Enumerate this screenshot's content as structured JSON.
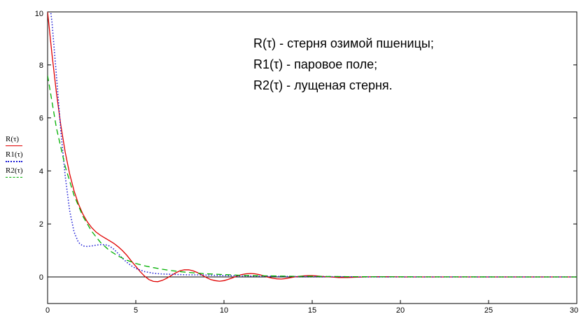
{
  "chart_data": {
    "type": "line",
    "title": "",
    "xlabel": "",
    "ylabel": "",
    "xlim": [
      0,
      30
    ],
    "ylim": [
      -1,
      10
    ],
    "x_ticks": [
      0,
      5,
      10,
      15,
      20,
      25,
      30
    ],
    "y_ticks": [
      0,
      2,
      4,
      6,
      8,
      10
    ],
    "grid": false,
    "legend": {
      "placement": "left",
      "entries": [
        "R(τ)",
        "R1(τ)",
        "R2(τ)"
      ]
    },
    "annotations": [
      "R(τ) - стерня озимой пшеницы;",
      "R1(τ) - паровое поле;",
      "R2(τ) - лущеная стерня."
    ],
    "series": [
      {
        "name": "R(τ)",
        "color": "#e00000",
        "style": "solid",
        "x": [
          0,
          0.25,
          0.5,
          0.75,
          1,
          1.25,
          1.5,
          1.75,
          2,
          2.25,
          2.5,
          2.75,
          3,
          3.25,
          3.5,
          3.75,
          4,
          4.25,
          4.5,
          4.75,
          5,
          5.25,
          5.5,
          5.75,
          6,
          6.25,
          6.5,
          6.75,
          7,
          7.25,
          7.5,
          7.75,
          8,
          8.25,
          8.5,
          8.75,
          9,
          9.25,
          9.5,
          9.75,
          10,
          10.25,
          10.5,
          10.75,
          11,
          11.25,
          11.5,
          11.75,
          12,
          12.25,
          12.5,
          12.75,
          13,
          13.25,
          13.5,
          13.75,
          14,
          14.25,
          14.5,
          14.75,
          15,
          15.25,
          15.5,
          15.75,
          16,
          16.25,
          16.5,
          16.75,
          17,
          17.5,
          18,
          18.5,
          19,
          19.5,
          20,
          21,
          22,
          23,
          24,
          25,
          26,
          27,
          28,
          29,
          30
        ],
        "values": [
          10.0,
          8.39,
          6.95,
          5.72,
          4.7,
          3.89,
          3.25,
          2.75,
          2.37,
          2.08,
          1.86,
          1.69,
          1.57,
          1.47,
          1.37,
          1.27,
          1.14,
          0.99,
          0.81,
          0.6,
          0.4,
          0.2,
          0.03,
          -0.1,
          -0.17,
          -0.18,
          -0.13,
          -0.05,
          0.05,
          0.15,
          0.23,
          0.27,
          0.27,
          0.23,
          0.16,
          0.07,
          -0.02,
          -0.1,
          -0.14,
          -0.16,
          -0.14,
          -0.09,
          -0.03,
          0.04,
          0.09,
          0.12,
          0.13,
          0.12,
          0.09,
          0.04,
          -0.01,
          -0.05,
          -0.07,
          -0.08,
          -0.06,
          -0.03,
          0.0,
          0.02,
          0.04,
          0.05,
          0.05,
          0.04,
          0.02,
          0.01,
          0.0,
          -0.01,
          -0.02,
          -0.02,
          -0.02,
          -0.01,
          0.0,
          0.01,
          0.01,
          0.01,
          0.0,
          0.0,
          0.0,
          0.0,
          0.0,
          0.0,
          0.0,
          0.0,
          0.0,
          0.0,
          0.0
        ]
      },
      {
        "name": "R1(τ)",
        "color": "#1f1fd6",
        "style": "dotted",
        "x": [
          0,
          0.25,
          0.5,
          0.75,
          1,
          1.25,
          1.5,
          1.75,
          2,
          2.25,
          2.5,
          2.75,
          3,
          3.25,
          3.5,
          3.75,
          4,
          4.25,
          4.5,
          4.75,
          5,
          5.5,
          6,
          6.5,
          7,
          7.5,
          8,
          8.5,
          9,
          9.5,
          10,
          11,
          12,
          13,
          14,
          15,
          16,
          17,
          18,
          19,
          20,
          22,
          24,
          26,
          28,
          30
        ],
        "values": [
          11.0,
          9.6,
          7.6,
          5.5,
          3.8,
          2.5,
          1.7,
          1.3,
          1.17,
          1.15,
          1.17,
          1.2,
          1.22,
          1.22,
          1.17,
          1.05,
          0.88,
          0.7,
          0.55,
          0.42,
          0.32,
          0.2,
          0.14,
          0.11,
          0.1,
          0.09,
          0.08,
          0.08,
          0.07,
          0.06,
          0.05,
          0.04,
          0.03,
          0.02,
          0.015,
          0.01,
          0.01,
          0.005,
          0.0,
          0.0,
          0.0,
          0.0,
          0.0,
          0.0,
          0.0,
          0.0
        ]
      },
      {
        "name": "R2(τ)",
        "color": "#00b000",
        "style": "dashed",
        "x": [
          0,
          0.5,
          1,
          1.5,
          2,
          2.5,
          3,
          3.5,
          4,
          4.5,
          5,
          5.5,
          6,
          6.5,
          7,
          7.5,
          8,
          9,
          10,
          11,
          12,
          13,
          14,
          15,
          16,
          17,
          18,
          20,
          22,
          24,
          26,
          28,
          30
        ],
        "values": [
          7.6,
          5.62,
          4.16,
          3.08,
          2.29,
          1.72,
          1.3,
          1.0,
          0.79,
          0.63,
          0.51,
          0.42,
          0.35,
          0.29,
          0.24,
          0.2,
          0.17,
          0.12,
          0.09,
          0.06,
          0.045,
          0.035,
          0.025,
          0.02,
          0.015,
          0.01,
          0.008,
          0.005,
          0.003,
          0.002,
          0.001,
          0.0,
          0.0
        ]
      }
    ]
  }
}
